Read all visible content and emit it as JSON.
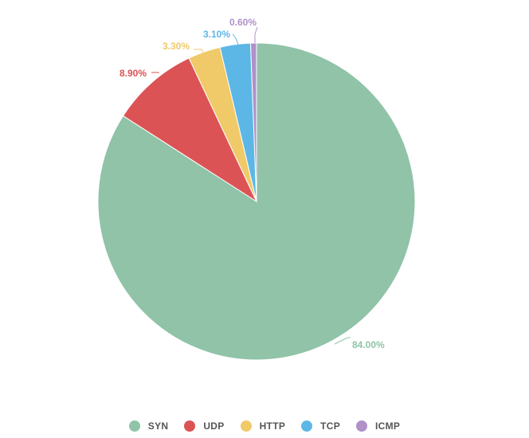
{
  "chart_data": {
    "type": "pie",
    "categories": [
      "SYN",
      "UDP",
      "HTTP",
      "TCP",
      "ICMP"
    ],
    "values": [
      84.0,
      8.9,
      3.3,
      3.1,
      0.6
    ],
    "data_labels": [
      "84.00%",
      "8.90%",
      "3.30%",
      "3.10%",
      "0.60%"
    ],
    "colors": [
      "#90c3a8",
      "#dc5355",
      "#f0ca68",
      "#5db7e6",
      "#b091c9"
    ],
    "start_angle_deg": 0,
    "direction": "clockwise",
    "legend_position": "bottom-center",
    "title": ""
  },
  "legend": {
    "items": [
      {
        "label": "SYN",
        "color": "#90c3a8"
      },
      {
        "label": "UDP",
        "color": "#dc5355"
      },
      {
        "label": "HTTP",
        "color": "#f0ca68"
      },
      {
        "label": "TCP",
        "color": "#5db7e6"
      },
      {
        "label": "ICMP",
        "color": "#b091c9"
      }
    ]
  }
}
